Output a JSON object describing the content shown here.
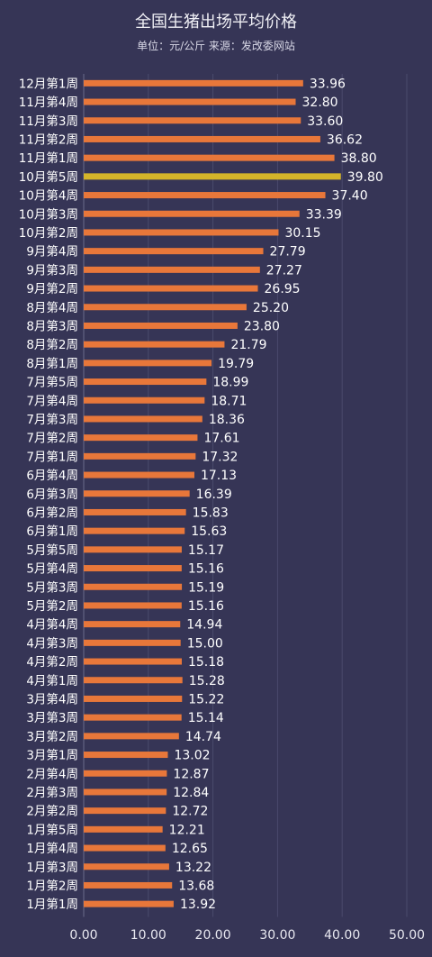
{
  "title": "全国生猪出场平均价格",
  "subtitle": "单位：元/公斤 来源：发改委网站",
  "chart_data": {
    "type": "bar",
    "orientation": "horizontal",
    "title": "全国生猪出场平均价格",
    "subtitle": "单位：元/公斤 来源：发改委网站",
    "xlim": [
      0,
      50
    ],
    "xticks": [
      "0.00",
      "10.00",
      "20.00",
      "30.00",
      "40.00",
      "50.00"
    ],
    "grid": true,
    "bar_color": "#e8773a",
    "highlight_color": "#d4b42a",
    "highlight_index": 5,
    "categories": [
      "12月第1周",
      "11月第4周",
      "11月第3周",
      "11月第2周",
      "11月第1周",
      "10月第5周",
      "10月第4周",
      "10月第3周",
      "10月第2周",
      "9月第4周",
      "9月第3周",
      "9月第2周",
      "8月第4周",
      "8月第3周",
      "8月第2周",
      "8月第1周",
      "7月第5周",
      "7月第4周",
      "7月第3周",
      "7月第2周",
      "7月第1周",
      "6月第4周",
      "6月第3周",
      "6月第2周",
      "6月第1周",
      "5月第5周",
      "5月第4周",
      "5月第3周",
      "5月第2周",
      "4月第4周",
      "4月第3周",
      "4月第2周",
      "4月第1周",
      "3月第4周",
      "3月第3周",
      "3月第2周",
      "3月第1周",
      "2月第4周",
      "2月第3周",
      "2月第2周",
      "1月第5周",
      "1月第4周",
      "1月第3周",
      "1月第2周",
      "1月第1周"
    ],
    "values": [
      33.96,
      32.8,
      33.6,
      36.62,
      38.8,
      39.8,
      37.4,
      33.39,
      30.15,
      27.79,
      27.27,
      26.95,
      25.2,
      23.8,
      21.79,
      19.79,
      18.99,
      18.71,
      18.36,
      17.61,
      17.32,
      17.13,
      16.39,
      15.83,
      15.63,
      15.17,
      15.16,
      15.19,
      15.16,
      14.94,
      15.0,
      15.18,
      15.28,
      15.22,
      15.14,
      14.74,
      13.02,
      12.87,
      12.84,
      12.72,
      12.21,
      12.65,
      13.22,
      13.68,
      13.92
    ],
    "value_labels": [
      "33.96",
      "32.80",
      "33.60",
      "36.62",
      "38.80",
      "39.80",
      "37.40",
      "33.39",
      "30.15",
      "27.79",
      "27.27",
      "26.95",
      "25.20",
      "23.80",
      "21.79",
      "19.79",
      "18.99",
      "18.71",
      "18.36",
      "17.61",
      "17.32",
      "17.13",
      "16.39",
      "15.83",
      "15.63",
      "15.17",
      "15.16",
      "15.19",
      "15.16",
      "14.94",
      "15.00",
      "15.18",
      "15.28",
      "15.22",
      "15.14",
      "14.74",
      "13.02",
      "12.87",
      "12.84",
      "12.72",
      "12.21",
      "12.65",
      "13.22",
      "13.68",
      "13.92"
    ]
  }
}
